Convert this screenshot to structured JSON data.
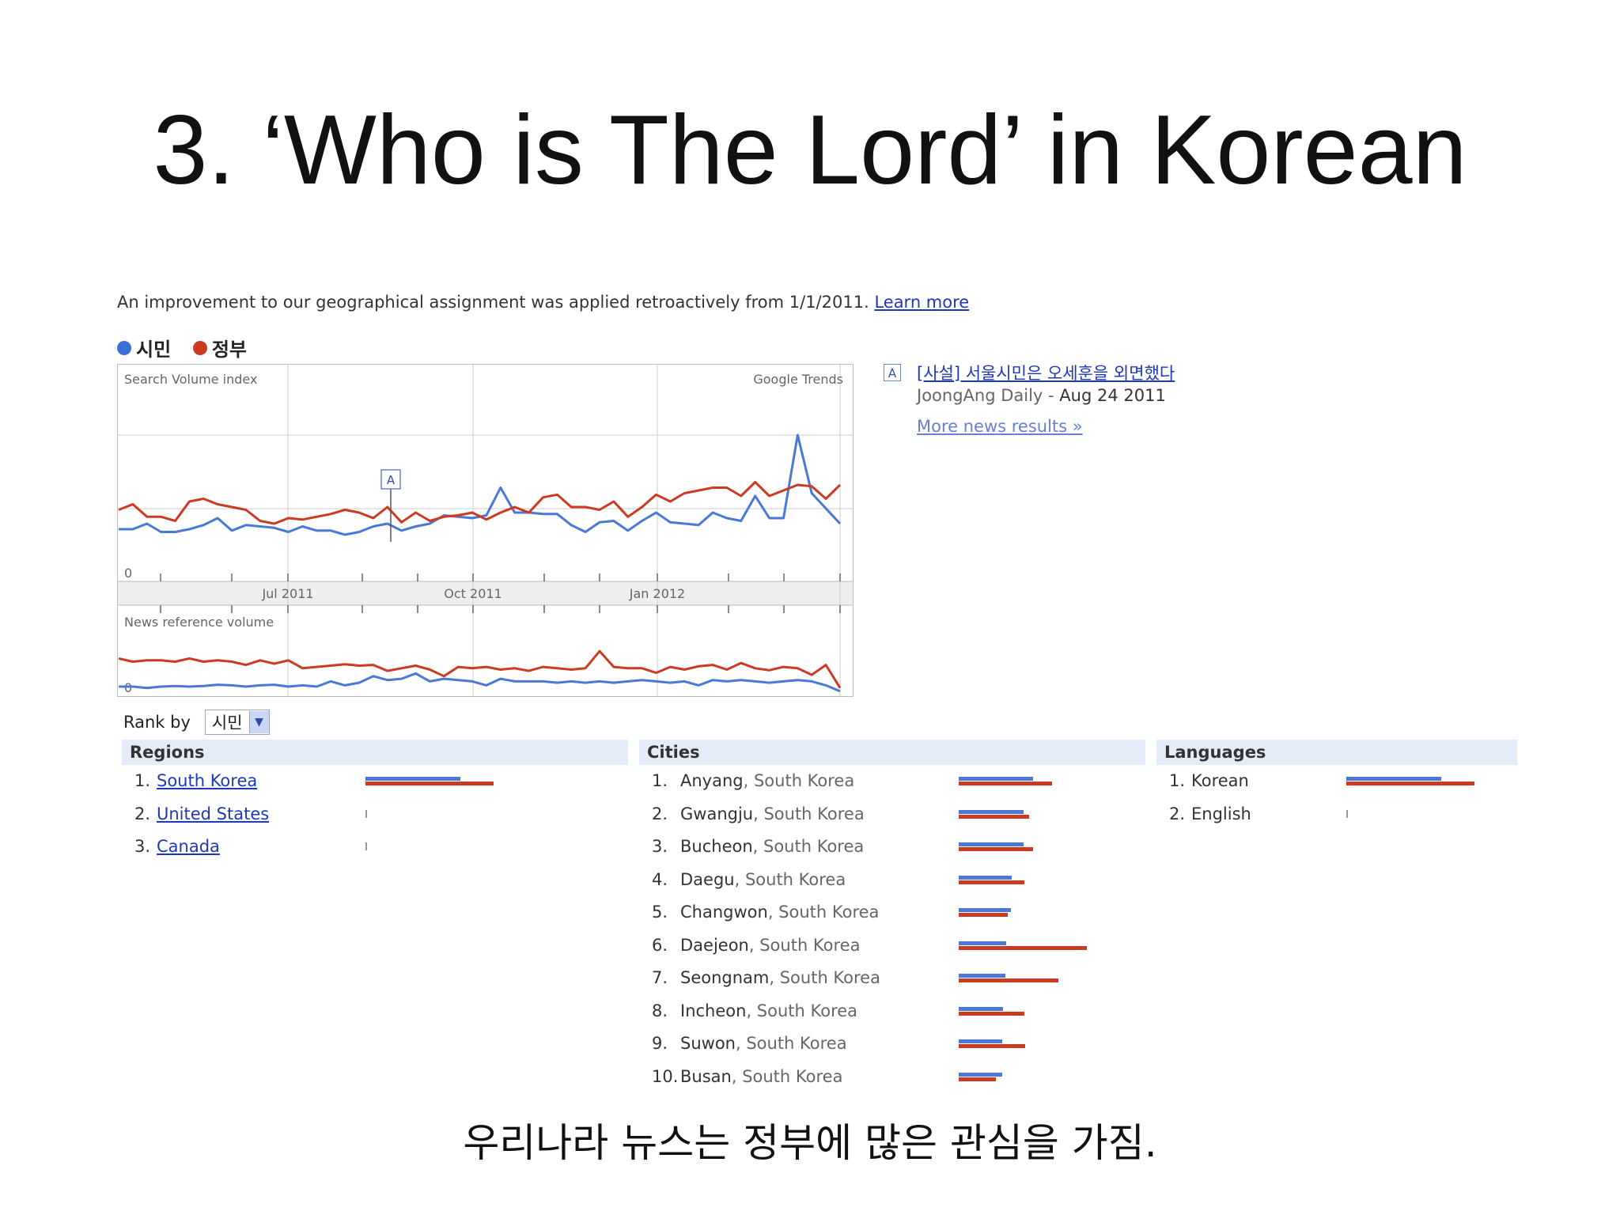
{
  "slide": {
    "title": "3. ‘Who is The Lord’ in Korean",
    "footer": "우리나라 뉴스는 정부에 많은 관심을 가짐."
  },
  "notice": {
    "text": "An improvement to our geographical assignment was applied retroactively from 1/1/2011.",
    "link": "Learn more"
  },
  "legend": [
    {
      "label": "시민",
      "color": "#3a6fd8"
    },
    {
      "label": "정부",
      "color": "#cc3a22"
    }
  ],
  "chart_data": {
    "type": "line",
    "search_label": "Search Volume index",
    "news_label": "News reference volume",
    "watermark": "Google Trends",
    "zero_label": "0",
    "annotation": "A",
    "x_labels": [
      "Jul 2011",
      "Oct 2011",
      "Jan 2012"
    ],
    "series": [
      {
        "name": "시민",
        "color": "#4a78d6",
        "search": [
          0.32,
          0.32,
          0.36,
          0.3,
          0.3,
          0.32,
          0.35,
          0.4,
          0.31,
          0.35,
          0.34,
          0.33,
          0.3,
          0.34,
          0.31,
          0.31,
          0.28,
          0.3,
          0.34,
          0.36,
          0.31,
          0.34,
          0.36,
          0.42,
          0.41,
          0.4,
          0.42,
          0.62,
          0.44,
          0.44,
          0.43,
          0.43,
          0.35,
          0.3,
          0.37,
          0.38,
          0.31,
          0.38,
          0.44,
          0.37,
          0.36,
          0.35,
          0.44,
          0.4,
          0.38,
          0.56,
          0.4,
          0.4,
          1.0,
          0.58,
          0.47,
          0.36
        ],
        "news": [
          0.12,
          0.12,
          0.1,
          0.12,
          0.13,
          0.12,
          0.13,
          0.15,
          0.14,
          0.12,
          0.14,
          0.15,
          0.12,
          0.14,
          0.12,
          0.2,
          0.14,
          0.18,
          0.28,
          0.22,
          0.24,
          0.32,
          0.2,
          0.24,
          0.22,
          0.2,
          0.14,
          0.24,
          0.2,
          0.2,
          0.2,
          0.18,
          0.2,
          0.18,
          0.2,
          0.18,
          0.2,
          0.22,
          0.2,
          0.18,
          0.2,
          0.14,
          0.22,
          0.2,
          0.22,
          0.2,
          0.18,
          0.2,
          0.22,
          0.2,
          0.14,
          0.05
        ]
      },
      {
        "name": "정부",
        "color": "#cc3a22",
        "search": [
          0.46,
          0.5,
          0.41,
          0.41,
          0.38,
          0.52,
          0.54,
          0.5,
          0.48,
          0.46,
          0.38,
          0.36,
          0.4,
          0.39,
          0.41,
          0.43,
          0.46,
          0.44,
          0.4,
          0.48,
          0.37,
          0.44,
          0.38,
          0.41,
          0.42,
          0.44,
          0.39,
          0.44,
          0.48,
          0.44,
          0.55,
          0.57,
          0.48,
          0.48,
          0.46,
          0.52,
          0.41,
          0.48,
          0.57,
          0.52,
          0.58,
          0.6,
          0.62,
          0.62,
          0.56,
          0.66,
          0.56,
          0.6,
          0.64,
          0.63,
          0.54,
          0.64
        ],
        "news": [
          0.55,
          0.5,
          0.52,
          0.52,
          0.5,
          0.55,
          0.5,
          0.52,
          0.5,
          0.45,
          0.52,
          0.47,
          0.52,
          0.4,
          0.42,
          0.44,
          0.46,
          0.44,
          0.45,
          0.36,
          0.4,
          0.44,
          0.38,
          0.28,
          0.42,
          0.4,
          0.42,
          0.38,
          0.4,
          0.36,
          0.42,
          0.4,
          0.38,
          0.4,
          0.66,
          0.42,
          0.4,
          0.4,
          0.33,
          0.42,
          0.38,
          0.43,
          0.45,
          0.38,
          0.48,
          0.4,
          0.37,
          0.42,
          0.4,
          0.3,
          0.45,
          0.1
        ]
      }
    ]
  },
  "news": {
    "marker": "A",
    "headline": "[사설] 서울시민은 오세훈을 외면했다",
    "source": "JoongAng Daily",
    "separator": " - ",
    "date": "Aug 24 2011",
    "more": "More news results »"
  },
  "rank_by": {
    "label": "Rank by",
    "selected": "시민"
  },
  "regions": {
    "header": "Regions",
    "items": [
      {
        "rank": "1.",
        "label": "South Korea",
        "blue": 1.0,
        "red": 1.0
      },
      {
        "rank": "2.",
        "label": "United States",
        "blue": 0.0,
        "red": 0.0
      },
      {
        "rank": "3.",
        "label": "Canada",
        "blue": 0.0,
        "red": 0.0
      }
    ]
  },
  "cities": {
    "header": "Cities",
    "items": [
      {
        "rank": "1.",
        "city": "Anyang",
        "country": ", South Korea",
        "blue": 0.78,
        "red": 0.73
      },
      {
        "rank": "2.",
        "city": "Gwangju",
        "country": ", South Korea",
        "blue": 0.68,
        "red": 0.55
      },
      {
        "rank": "3.",
        "city": "Bucheon",
        "country": ", South Korea",
        "blue": 0.68,
        "red": 0.58
      },
      {
        "rank": "4.",
        "city": "Daegu",
        "country": ", South Korea",
        "blue": 0.56,
        "red": 0.51
      },
      {
        "rank": "5.",
        "city": "Changwon",
        "country": ", South Korea",
        "blue": 0.55,
        "red": 0.38
      },
      {
        "rank": "6.",
        "city": "Daejeon",
        "country": ", South Korea",
        "blue": 0.5,
        "red": 1.0
      },
      {
        "rank": "7.",
        "city": "Seongnam",
        "country": ", South Korea",
        "blue": 0.49,
        "red": 0.78
      },
      {
        "rank": "8.",
        "city": "Incheon",
        "country": ", South Korea",
        "blue": 0.47,
        "red": 0.51
      },
      {
        "rank": "9.",
        "city": "Suwon",
        "country": ", South Korea",
        "blue": 0.46,
        "red": 0.52
      },
      {
        "rank": "10.",
        "city": "Busan",
        "country": ", South Korea",
        "blue": 0.46,
        "red": 0.29
      }
    ]
  },
  "languages": {
    "header": "Languages",
    "items": [
      {
        "rank": "1.",
        "label": "Korean",
        "blue": 1.0,
        "red": 1.0
      },
      {
        "rank": "2.",
        "label": "English",
        "blue": 0.0,
        "red": 0.0
      }
    ]
  }
}
